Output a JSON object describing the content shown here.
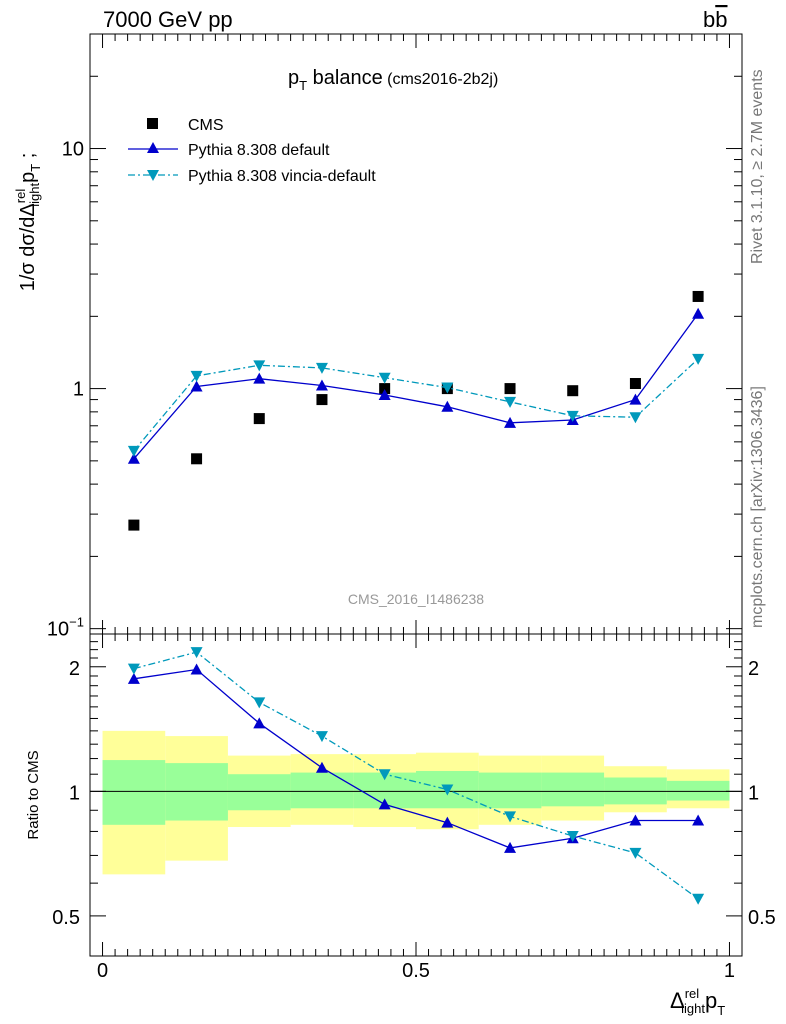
{
  "header": {
    "energy": "7000 GeV pp",
    "process": "b",
    "process_bar": "b"
  },
  "side_labels": {
    "rivet": "Rivet 3.1.10, ≥ 2.7M events",
    "source": "mcplots.cern.ch [arXiv:1306.3436]"
  },
  "analysis_id": "CMS_2016_I1486238",
  "main_title": {
    "p": "p",
    "T": "T",
    "balance": " balance",
    "tag": " (cms2016-2b2j)"
  },
  "y_axis_main": {
    "a": "1/σ dσ/dΔ",
    "sup": "rel",
    "sub1": "light",
    "b": "p",
    "sub2": "T",
    "c": " ;"
  },
  "y_axis_ratio": "Ratio to CMS",
  "x_axis": {
    "a": "Δ",
    "sup": "rel",
    "sub1": "light",
    "b": "p",
    "sub2": "T"
  },
  "legend": [
    {
      "label": "CMS",
      "marker": "square",
      "color": "#000000"
    },
    {
      "label": "Pythia 8.308 default",
      "marker": "triangle-up",
      "color": "#0000cc"
    },
    {
      "label": "Pythia 8.308 vincia-default",
      "marker": "triangle-down",
      "color": "#0099bb"
    }
  ],
  "main_ticks": {
    "y_labels": [
      {
        "v": 0.1,
        "base": "10",
        "exp": "−1"
      },
      {
        "v": 1,
        "base": "1",
        "exp": ""
      },
      {
        "v": 10,
        "base": "10",
        "exp": ""
      }
    ]
  },
  "chart_data": [
    {
      "type": "scatter",
      "panel": "main",
      "xlim": [
        -0.02,
        1.02
      ],
      "ylim": [
        0.095,
        30
      ],
      "yscale": "log",
      "x": [
        0.05,
        0.15,
        0.25,
        0.35,
        0.45,
        0.55,
        0.65,
        0.75,
        0.85,
        0.95
      ],
      "series": [
        {
          "name": "CMS",
          "values": [
            0.27,
            0.51,
            0.75,
            0.9,
            1.0,
            1.0,
            1.0,
            0.98,
            1.05,
            2.42
          ]
        },
        {
          "name": "Pythia 8.308 default",
          "values": [
            0.51,
            1.02,
            1.1,
            1.03,
            0.94,
            0.84,
            0.72,
            0.74,
            0.9,
            2.05
          ]
        },
        {
          "name": "Pythia 8.308 vincia-default",
          "values": [
            0.55,
            1.13,
            1.25,
            1.22,
            1.11,
            1.01,
            0.88,
            0.77,
            0.76,
            1.33
          ]
        }
      ]
    },
    {
      "type": "line",
      "panel": "ratio",
      "xlim": [
        -0.02,
        1.02
      ],
      "ylim": [
        0.4,
        2.4
      ],
      "yscale": "log",
      "x": [
        0.05,
        0.15,
        0.25,
        0.35,
        0.45,
        0.55,
        0.65,
        0.75,
        0.85,
        0.95
      ],
      "x_ticks": [
        "0",
        "0.5",
        "1"
      ],
      "y_ticks": [
        "0.5",
        "1",
        "2"
      ],
      "bands": {
        "edges": [
          0.0,
          0.1,
          0.2,
          0.3,
          0.4,
          0.5,
          0.6,
          0.7,
          0.8,
          0.9,
          1.0
        ],
        "inner_low": [
          0.83,
          0.85,
          0.9,
          0.91,
          0.91,
          0.91,
          0.91,
          0.92,
          0.93,
          0.95
        ],
        "inner_high": [
          1.19,
          1.17,
          1.1,
          1.11,
          1.11,
          1.12,
          1.11,
          1.11,
          1.08,
          1.06
        ],
        "outer_low": [
          0.63,
          0.68,
          0.82,
          0.83,
          0.82,
          0.81,
          0.83,
          0.85,
          0.89,
          0.91
        ],
        "outer_high": [
          1.4,
          1.36,
          1.22,
          1.23,
          1.23,
          1.24,
          1.22,
          1.22,
          1.15,
          1.13
        ]
      },
      "series": [
        {
          "name": "Pythia 8.308 default",
          "values": [
            1.87,
            1.97,
            1.46,
            1.14,
            0.93,
            0.84,
            0.73,
            0.77,
            0.85,
            0.85
          ]
        },
        {
          "name": "Pythia 8.308 vincia-default",
          "values": [
            1.98,
            2.17,
            1.64,
            1.36,
            1.1,
            1.01,
            0.87,
            0.78,
            0.71,
            0.55
          ]
        }
      ]
    }
  ]
}
